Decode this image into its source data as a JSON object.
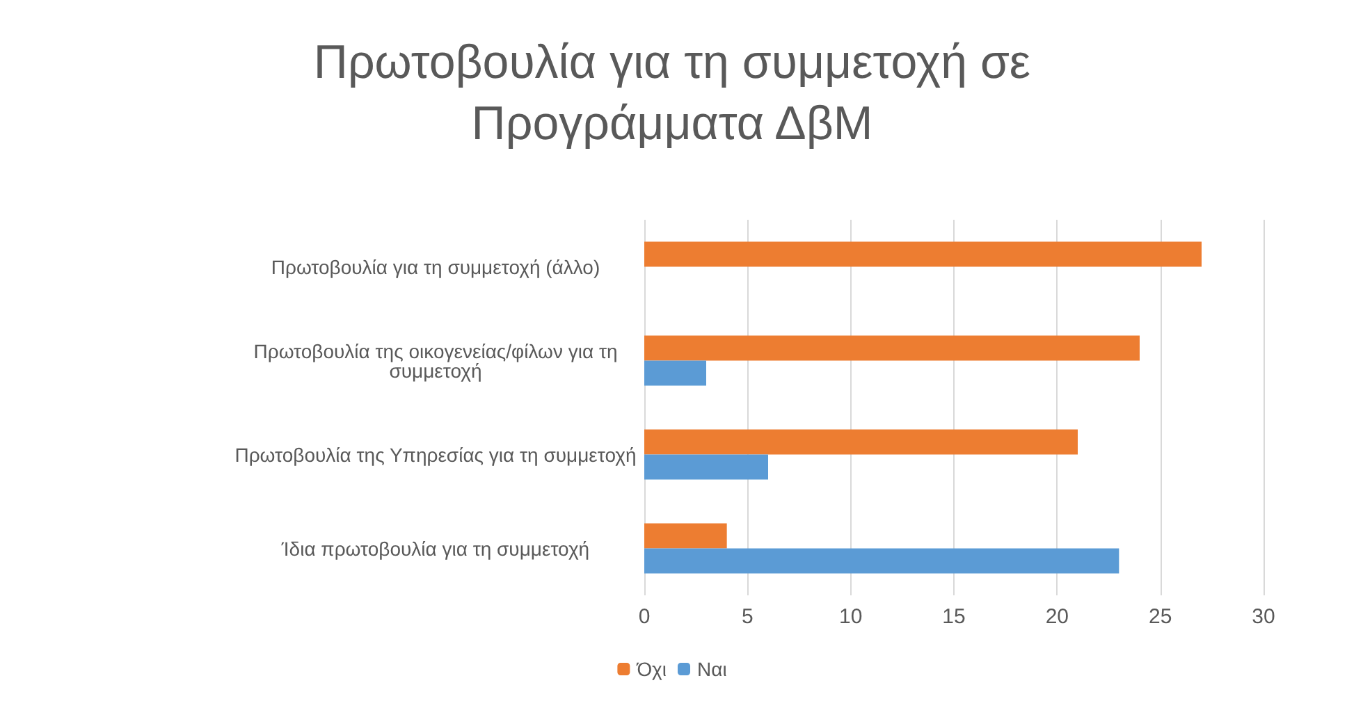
{
  "chart_data": {
    "type": "bar",
    "orientation": "horizontal",
    "title": "Πρωτοβουλία για τη συμμετοχή σε\nΠρογράμματα ΔβΜ",
    "categories": [
      "Πρωτοβουλία για τη συμμετοχή (άλλο)",
      "Πρωτοβουλία της οικογενείας/φίλων για τη\nσυμμετοχή",
      "Πρωτοβουλία της Υπηρεσίας για τη συμμετοχή",
      "Ίδια πρωτοβουλία για τη συμμετοχή"
    ],
    "series": [
      {
        "name": "Όχι",
        "color": "#ed7d31",
        "values": [
          27,
          24,
          21,
          4
        ]
      },
      {
        "name": "Ναι",
        "color": "#5b9bd5",
        "values": [
          0,
          3,
          6,
          23
        ]
      }
    ],
    "xlim": [
      0,
      30
    ],
    "xticks": [
      0,
      5,
      10,
      15,
      20,
      25,
      30
    ],
    "grid": "x",
    "legend": "bottom"
  }
}
